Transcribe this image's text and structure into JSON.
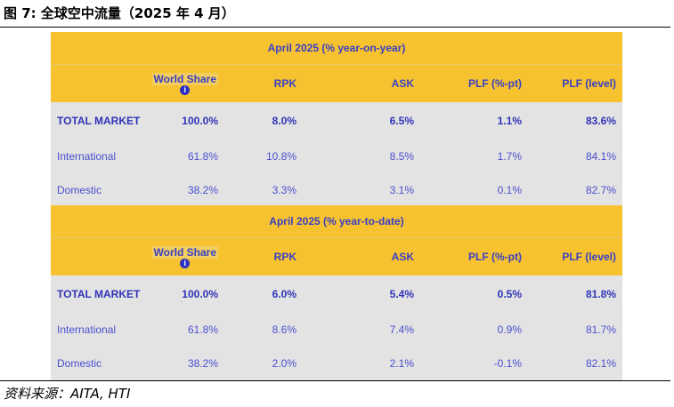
{
  "figure_title": "图 7: 全球空中流量（2025 年 4 月）",
  "source": "资料来源：AITA, HTI",
  "headers": {
    "world_share": "World Share",
    "rpk": "RPK",
    "ask": "ASK",
    "plf_pt": "PLF (%-pt)",
    "plf_level": "PLF (level)",
    "info_icon": "i"
  },
  "panels": [
    {
      "title": "April 2025 (% year-on-year)",
      "rows": [
        {
          "label": "TOTAL MARKET",
          "world_share": "100.0%",
          "rpk": "8.0%",
          "ask": "6.5%",
          "plf_pt": "1.1%",
          "plf_level": "83.6%"
        },
        {
          "label": "International",
          "world_share": "61.8%",
          "rpk": "10.8%",
          "ask": "8.5%",
          "plf_pt": "1.7%",
          "plf_level": "84.1%"
        },
        {
          "label": "Domestic",
          "world_share": "38.2%",
          "rpk": "3.3%",
          "ask": "3.1%",
          "plf_pt": "0.1%",
          "plf_level": "82.7%"
        }
      ]
    },
    {
      "title": "April 2025 (% year-to-date)",
      "rows": [
        {
          "label": "TOTAL MARKET",
          "world_share": "100.0%",
          "rpk": "6.0%",
          "ask": "5.4%",
          "plf_pt": "0.5%",
          "plf_level": "81.8%"
        },
        {
          "label": "International",
          "world_share": "61.8%",
          "rpk": "8.6%",
          "ask": "7.4%",
          "plf_pt": "0.9%",
          "plf_level": "81.7%"
        },
        {
          "label": "Domestic",
          "world_share": "38.2%",
          "rpk": "2.0%",
          "ask": "2.1%",
          "plf_pt": "-0.1%",
          "plf_level": "82.1%"
        }
      ]
    }
  ],
  "colors": {
    "header_yellow": "#f6c230",
    "body_gray": "#e3e3e3",
    "text_blue": "#3a3fc4"
  }
}
